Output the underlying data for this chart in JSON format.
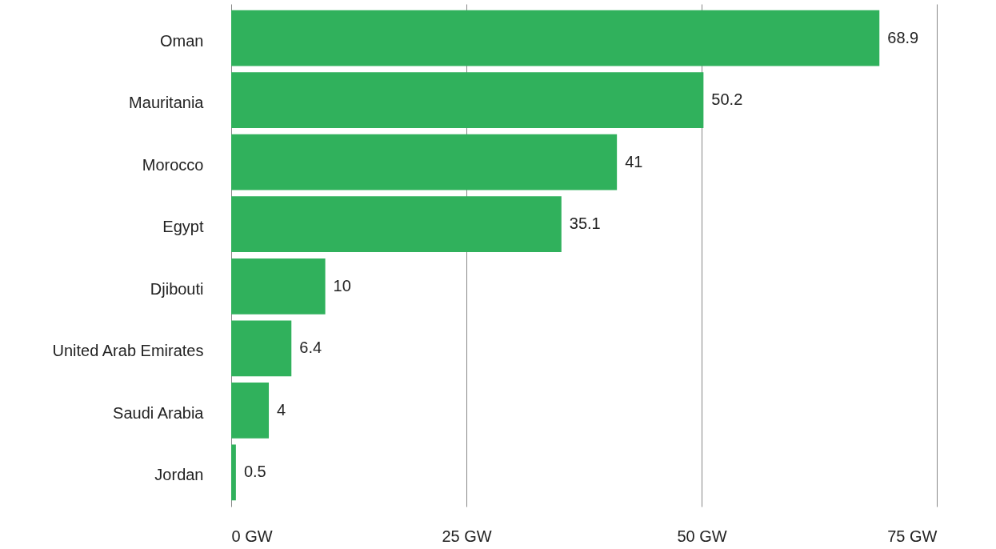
{
  "chart_data": {
    "type": "bar",
    "orientation": "horizontal",
    "categories": [
      "Oman",
      "Mauritania",
      "Morocco",
      "Egypt",
      "Djibouti",
      "United Arab Emirates",
      "Saudi Arabia",
      "Jordan"
    ],
    "values": [
      68.9,
      50.2,
      41,
      35.1,
      10,
      6.4,
      4,
      0.5
    ],
    "color": "#30b15c",
    "xlim": [
      0,
      75
    ],
    "xticks": [
      {
        "value": 0,
        "label": "0 GW"
      },
      {
        "value": 25,
        "label": "25 GW"
      },
      {
        "value": 50,
        "label": "50 GW"
      },
      {
        "value": 75,
        "label": "75 GW"
      }
    ],
    "grid": "x",
    "data_labels": true
  }
}
